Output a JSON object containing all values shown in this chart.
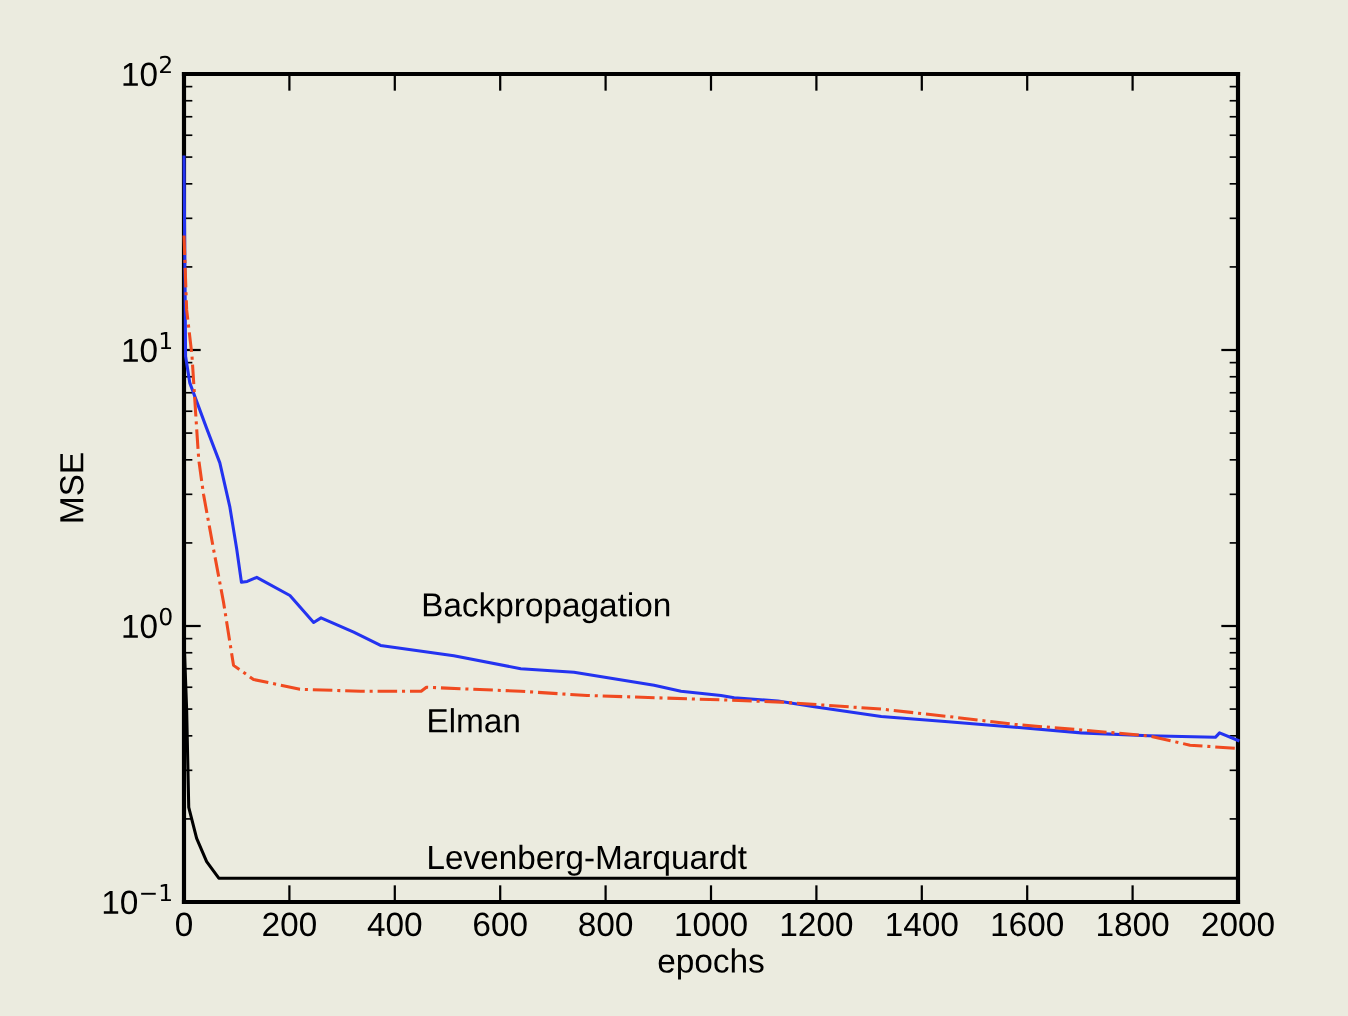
{
  "chart_data": {
    "type": "line",
    "xlabel": "epochs",
    "ylabel": "MSE",
    "log": "y",
    "grid": false,
    "legend": false,
    "xlim": [
      0,
      2000
    ],
    "xticks": [
      0,
      200,
      400,
      600,
      800,
      1000,
      1200,
      1400,
      1600,
      1800,
      2000
    ],
    "ylim": [
      0.1,
      100
    ],
    "yticks": [
      {
        "value": 0.1,
        "label": "10$^{−1}$"
      },
      {
        "value": 1,
        "label": "10$^{0}$"
      },
      {
        "value": 10,
        "label": "10$^{1}$"
      },
      {
        "value": 100,
        "label": "10$^{2}$"
      }
    ],
    "series": [
      {
        "name": "Backpropagation",
        "color": "#2433f0",
        "line_style": "solid",
        "x": [
          0,
          3,
          11,
          43,
          68,
          87,
          100,
          109,
          120,
          138,
          201,
          246,
          260,
          322,
          373,
          512,
          639,
          740,
          892,
          943,
          1019,
          1044,
          1127,
          1196,
          1323,
          1450,
          1577,
          1703,
          1830,
          1957,
          1965,
          2000
        ],
        "values": [
          50,
          9.5,
          7.6,
          5.2,
          3.9,
          2.7,
          1.9,
          1.44,
          1.45,
          1.5,
          1.29,
          1.03,
          1.07,
          0.95,
          0.85,
          0.78,
          0.7,
          0.68,
          0.61,
          0.58,
          0.56,
          0.55,
          0.535,
          0.51,
          0.47,
          0.45,
          0.43,
          0.41,
          0.4,
          0.395,
          0.41,
          0.385
        ]
      },
      {
        "name": "Elman",
        "color": "#f04a20",
        "line_style": "dashdot",
        "x": [
          0,
          5,
          15,
          24,
          28,
          37,
          56,
          75,
          94,
          132,
          220,
          335,
          450,
          460,
          639,
          765,
          1019,
          1133,
          1323,
          1450,
          1577,
          1703,
          1830,
          1909,
          2000
        ],
        "values": [
          26,
          14,
          9.6,
          5.2,
          4.0,
          3.0,
          1.9,
          1.22,
          0.72,
          0.64,
          0.59,
          0.58,
          0.58,
          0.6,
          0.58,
          0.56,
          0.54,
          0.53,
          0.5,
          0.47,
          0.44,
          0.42,
          0.4,
          0.37,
          0.36
        ]
      },
      {
        "name": "Levenberg-Marquardt",
        "color": "#000000",
        "line_style": "solid",
        "x": [
          0,
          5,
          9,
          24,
          43,
          66,
          2000
        ],
        "values": [
          0.9,
          0.5,
          0.22,
          0.17,
          0.14,
          0.122,
          0.122
        ]
      }
    ]
  }
}
